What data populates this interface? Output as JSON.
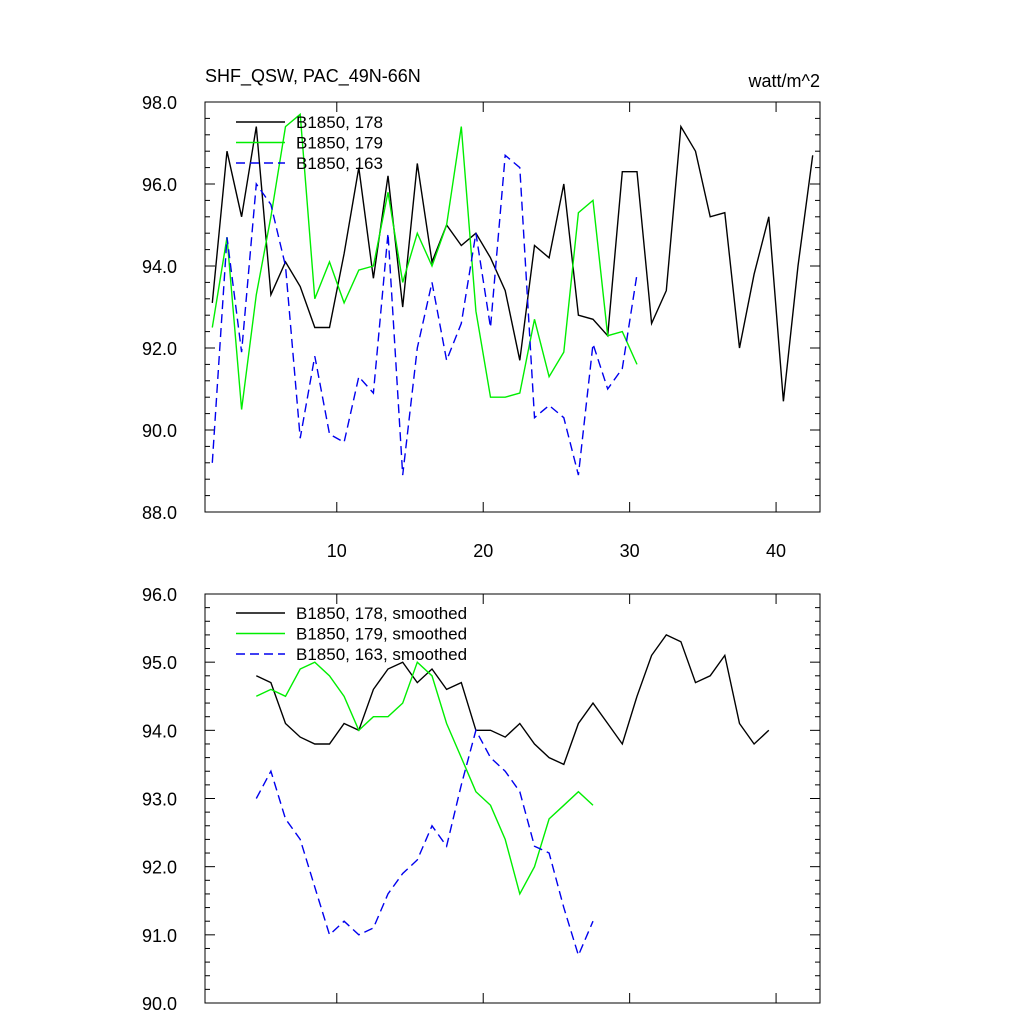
{
  "figure": {
    "title_left": "SHF_QSW, PAC_49N-66N",
    "title_right": "watt/m^2"
  },
  "chart_data": [
    {
      "type": "line",
      "panel": "top",
      "title": "SHF_QSW, PAC_49N-66N",
      "units": "watt/m^2",
      "xlim": [
        1,
        43
      ],
      "ylim": [
        88,
        98
      ],
      "xticks": [
        10,
        20,
        30,
        40
      ],
      "xtick_labels": [
        "10",
        "20",
        "30",
        "40"
      ],
      "yticks": [
        88,
        90,
        92,
        94,
        96,
        98
      ],
      "ytick_labels": [
        "88.0",
        "90.0",
        "92.0",
        "94.0",
        "96.0",
        "98.0"
      ],
      "legend_position": "top-left",
      "series": [
        {
          "name": "B1850, 178",
          "color": "#000000",
          "dash": "solid",
          "x": [
            1.5,
            2.5,
            3.5,
            4.5,
            5.5,
            6.5,
            7.5,
            8.5,
            9.5,
            10.5,
            11.5,
            12.5,
            13.5,
            14.5,
            15.5,
            16.5,
            17.5,
            18.5,
            19.5,
            20.5,
            21.5,
            22.5,
            23.5,
            24.5,
            25.5,
            26.5,
            27.5,
            28.5,
            29.5,
            30.5,
            31.5,
            32.5,
            33.5,
            34.5,
            35.5,
            36.5,
            37.5,
            38.5,
            39.5,
            40.5,
            41.5,
            42.5
          ],
          "values": [
            93.1,
            96.8,
            95.2,
            97.4,
            93.3,
            94.1,
            93.5,
            92.5,
            92.5,
            94.3,
            96.4,
            93.7,
            96.2,
            93.0,
            96.5,
            94.1,
            95.0,
            94.5,
            94.8,
            94.2,
            93.4,
            91.7,
            94.5,
            94.2,
            96.0,
            92.8,
            92.7,
            92.3,
            96.3,
            96.3,
            92.6,
            93.4,
            97.4,
            96.8,
            95.2,
            95.3,
            92.0,
            93.8,
            95.2,
            90.7,
            94.0,
            96.7
          ]
        },
        {
          "name": "B1850, 179",
          "color": "#00ee00",
          "dash": "solid",
          "x": [
            1.5,
            2.5,
            3.5,
            4.5,
            5.5,
            6.5,
            7.5,
            8.5,
            9.5,
            10.5,
            11.5,
            12.5,
            13.5,
            14.5,
            15.5,
            16.5,
            17.5,
            18.5,
            19.5,
            20.5,
            21.5,
            22.5,
            23.5,
            24.5,
            25.5,
            26.5,
            27.5,
            28.5,
            29.5,
            30.5
          ],
          "values": [
            92.5,
            94.7,
            90.5,
            93.3,
            95.2,
            97.4,
            97.7,
            93.2,
            94.1,
            93.1,
            93.9,
            94.0,
            95.8,
            93.6,
            94.8,
            94.0,
            95.0,
            97.4,
            92.9,
            90.8,
            90.8,
            90.9,
            92.7,
            91.3,
            91.9,
            95.3,
            95.6,
            92.3,
            92.4,
            91.6
          ]
        },
        {
          "name": "B1850, 163",
          "color": "#0000ee",
          "dash": "dashed",
          "x": [
            1.5,
            2.5,
            3.5,
            4.5,
            5.5,
            6.5,
            7.5,
            8.5,
            9.5,
            10.5,
            11.5,
            12.5,
            13.5,
            14.5,
            15.5,
            16.5,
            17.5,
            18.5,
            19.5,
            20.5,
            21.5,
            22.5,
            23.5,
            24.5,
            25.5,
            26.5,
            27.5,
            28.5,
            29.5,
            30.5
          ],
          "values": [
            89.2,
            94.7,
            91.9,
            96.0,
            95.5,
            94.0,
            89.8,
            91.8,
            89.9,
            89.7,
            91.3,
            90.9,
            94.8,
            88.9,
            92.0,
            93.6,
            91.7,
            92.6,
            94.8,
            92.5,
            96.7,
            96.4,
            90.3,
            90.6,
            90.3,
            88.9,
            92.1,
            91.0,
            91.5,
            93.8
          ]
        }
      ]
    },
    {
      "type": "line",
      "panel": "bottom",
      "xlim": [
        1,
        43
      ],
      "ylim": [
        90,
        96
      ],
      "xticks": [
        10,
        20,
        30,
        40
      ],
      "yticks": [
        90,
        91,
        92,
        93,
        94,
        95,
        96
      ],
      "ytick_labels": [
        "90.0",
        "91.0",
        "92.0",
        "93.0",
        "94.0",
        "95.0",
        "96.0"
      ],
      "legend_position": "top-left",
      "series": [
        {
          "name": "B1850, 178, smoothed",
          "color": "#000000",
          "dash": "solid",
          "x": [
            4.5,
            5.5,
            6.5,
            7.5,
            8.5,
            9.5,
            10.5,
            11.5,
            12.5,
            13.5,
            14.5,
            15.5,
            16.5,
            17.5,
            18.5,
            19.5,
            20.5,
            21.5,
            22.5,
            23.5,
            24.5,
            25.5,
            26.5,
            27.5,
            28.5,
            29.5,
            30.5,
            31.5,
            32.5,
            33.5,
            34.5,
            35.5,
            36.5,
            37.5,
            38.5,
            39.5
          ],
          "values": [
            94.8,
            94.7,
            94.1,
            93.9,
            93.8,
            93.8,
            94.1,
            94.0,
            94.6,
            94.9,
            95.0,
            94.7,
            94.9,
            94.6,
            94.7,
            94.0,
            94.0,
            93.9,
            94.1,
            93.8,
            93.6,
            93.5,
            94.1,
            94.4,
            94.1,
            93.8,
            94.5,
            95.1,
            95.4,
            95.3,
            94.7,
            94.8,
            95.1,
            94.1,
            93.8,
            94.0
          ]
        },
        {
          "name": "B1850, 179, smoothed",
          "color": "#00ee00",
          "dash": "solid",
          "x": [
            4.5,
            5.5,
            6.5,
            7.5,
            8.5,
            9.5,
            10.5,
            11.5,
            12.5,
            13.5,
            14.5,
            15.5,
            16.5,
            17.5,
            18.5,
            19.5,
            20.5,
            21.5,
            22.5,
            23.5,
            24.5,
            25.5,
            26.5,
            27.5
          ],
          "values": [
            94.5,
            94.6,
            94.5,
            94.9,
            95.0,
            94.8,
            94.5,
            94.0,
            94.2,
            94.2,
            94.4,
            95.0,
            94.8,
            94.1,
            93.6,
            93.1,
            92.9,
            92.4,
            91.6,
            92.0,
            92.7,
            92.9,
            93.1,
            92.9
          ]
        },
        {
          "name": "B1850, 163, smoothed",
          "color": "#0000ee",
          "dash": "dashed",
          "x": [
            4.5,
            5.5,
            6.5,
            7.5,
            8.5,
            9.5,
            10.5,
            11.5,
            12.5,
            13.5,
            14.5,
            15.5,
            16.5,
            17.5,
            18.5,
            19.5,
            20.5,
            21.5,
            22.5,
            23.5,
            24.5,
            25.5,
            26.5,
            27.5
          ],
          "values": [
            93.0,
            93.4,
            92.7,
            92.4,
            91.7,
            91.0,
            91.2,
            91.0,
            91.1,
            91.6,
            91.9,
            92.1,
            92.6,
            92.3,
            93.2,
            94.0,
            93.6,
            93.4,
            93.1,
            92.3,
            92.2,
            91.4,
            90.7,
            91.2
          ]
        }
      ]
    }
  ]
}
